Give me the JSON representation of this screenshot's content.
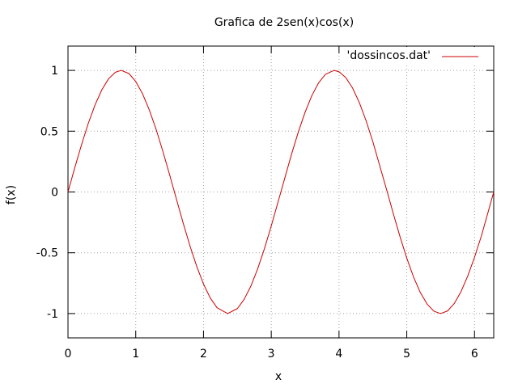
{
  "chart_data": {
    "type": "line",
    "title": "Grafica de 2sen(x)cos(x)",
    "xlabel": "x",
    "ylabel": "f(x)",
    "xlim": [
      0,
      6.2832
    ],
    "ylim": [
      -1.2,
      1.2
    ],
    "xticks": [
      0,
      1,
      2,
      3,
      4,
      5,
      6
    ],
    "xtick_labels": [
      "0",
      "1",
      "2",
      "3",
      "4",
      "5",
      "6"
    ],
    "yticks": [
      -1,
      -0.5,
      0,
      0.5,
      1
    ],
    "ytick_labels": [
      "-1",
      "-0.5",
      "0",
      "0.5",
      "1"
    ],
    "grid": true,
    "legend_position": "top-right",
    "series": [
      {
        "name": "'dossincos.dat'",
        "color": "#cc0000",
        "x": [
          0.0,
          0.1,
          0.2,
          0.3,
          0.4,
          0.5,
          0.6,
          0.7,
          0.785,
          0.9,
          1.0,
          1.1,
          1.2,
          1.3,
          1.4,
          1.5,
          1.571,
          1.7,
          1.8,
          1.9,
          2.0,
          2.1,
          2.2,
          2.356,
          2.5,
          2.6,
          2.7,
          2.8,
          2.9,
          3.0,
          3.142,
          3.3,
          3.4,
          3.5,
          3.6,
          3.7,
          3.8,
          3.927,
          4.0,
          4.1,
          4.2,
          4.3,
          4.4,
          4.5,
          4.712,
          4.8,
          4.9,
          5.0,
          5.1,
          5.2,
          5.3,
          5.4,
          5.498,
          5.6,
          5.7,
          5.8,
          5.9,
          6.0,
          6.1,
          6.2,
          6.283
        ],
        "y": [
          0.0,
          0.199,
          0.389,
          0.565,
          0.717,
          0.841,
          0.932,
          0.985,
          1.0,
          0.974,
          0.909,
          0.808,
          0.675,
          0.516,
          0.335,
          0.141,
          0.0,
          -0.256,
          -0.443,
          -0.612,
          -0.757,
          -0.872,
          -0.952,
          -1.0,
          -0.959,
          -0.883,
          -0.773,
          -0.631,
          -0.465,
          -0.279,
          0.0,
          0.312,
          0.494,
          0.657,
          0.794,
          0.899,
          0.968,
          1.0,
          0.989,
          0.941,
          0.855,
          0.735,
          0.585,
          0.412,
          0.0,
          -0.176,
          -0.367,
          -0.544,
          -0.699,
          -0.827,
          -0.922,
          -0.98,
          -1.0,
          -0.979,
          -0.918,
          -0.82,
          -0.691,
          -0.537,
          -0.364,
          -0.166,
          0.0
        ]
      }
    ]
  }
}
